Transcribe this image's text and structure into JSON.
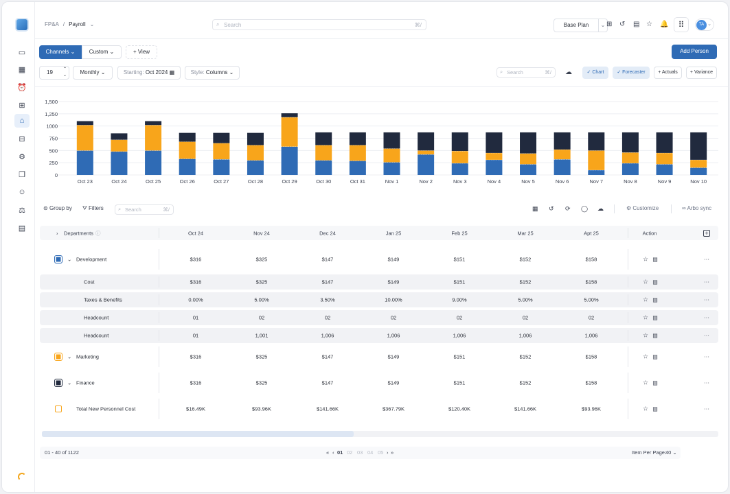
{
  "sidebar": {
    "icons": [
      "sidebar-toggle-icon",
      "dashboard-icon",
      "alarm-icon",
      "widgets-icon",
      "payroll-icon",
      "money-icon",
      "analytics-icon",
      "documents-icon",
      "user-icon",
      "bank-icon",
      "card-icon"
    ]
  },
  "header": {
    "breadcrumb": [
      "FP&A",
      "/",
      "Payroll"
    ],
    "search_placeholder": "Search",
    "search_shortcut": "⌘/",
    "plan": "Base Plan",
    "avatar": "TA"
  },
  "toolbar": {
    "channels": "Channels",
    "custom": "Custom",
    "add_view": "View",
    "add_person": "Add Person",
    "periods": "19",
    "frequency": "Monthly",
    "starting_label": "Starting:",
    "starting_value": "Oct 2024",
    "style_label": "Style:",
    "style_value": "Columns",
    "search_placeholder": "Search",
    "search_shortcut": "⌘/",
    "chart": "Chart",
    "forecaster": "Forecaster",
    "actuals": "Actuals",
    "variance": "Variance"
  },
  "chart_data": {
    "type": "bar",
    "stacked": true,
    "categories": [
      "Oct 23",
      "Oct 24",
      "Oct 25",
      "Oct 26",
      "Oct 27",
      "Oct 28",
      "Oct 29",
      "Oct 30",
      "Oct 31",
      "Nov 1",
      "Nov 2",
      "Nov 3",
      "Nov 4",
      "Nov 5",
      "Nov 6",
      "Nov 7",
      "Nov 8",
      "Nov 9",
      "Nov 10"
    ],
    "yticks": [
      "1,500",
      "1,250",
      "1000",
      "750",
      "500",
      "250",
      "0"
    ],
    "ylim": [
      0,
      1500
    ],
    "grid": true,
    "series": [
      {
        "color": "#2f6bb5",
        "values": [
          500,
          480,
          500,
          330,
          320,
          300,
          580,
          300,
          290,
          260,
          420,
          240,
          310,
          220,
          320,
          100,
          240,
          220,
          150
        ]
      },
      {
        "color": "#f8a51b",
        "values": [
          520,
          240,
          520,
          350,
          330,
          310,
          600,
          310,
          320,
          280,
          80,
          250,
          140,
          220,
          200,
          400,
          220,
          230,
          160
        ]
      },
      {
        "color": "#212a3e",
        "values": [
          80,
          130,
          80,
          180,
          210,
          250,
          80,
          260,
          260,
          330,
          370,
          380,
          420,
          430,
          350,
          370,
          410,
          420,
          560
        ]
      }
    ]
  },
  "table_toolbar": {
    "group_by": "Group by",
    "filters": "Filters",
    "search_placeholder": "Search",
    "search_shortcut": "⌘/",
    "customize": "Customize",
    "sync": "Arbo sync"
  },
  "table": {
    "header_label": "Departments",
    "columns": [
      "Oct 24",
      "Nov 24",
      "Dec 24",
      "Jan 25",
      "Feb 25",
      "Mar 25",
      "Apt 25"
    ],
    "action": "Action",
    "rows": [
      {
        "label": "Development",
        "kind": "group",
        "swatch": "#2f6bb5",
        "values": [
          "$316",
          "$325",
          "$147",
          "$149",
          "$151",
          "$152",
          "$158"
        ]
      },
      {
        "label": "Cost",
        "kind": "sub",
        "values": [
          "$316",
          "$325",
          "$147",
          "$149",
          "$151",
          "$152",
          "$158"
        ]
      },
      {
        "label": "Taxes & Benefits",
        "kind": "sub",
        "values": [
          "0.00%",
          "5.00%",
          "3.50%",
          "10.00%",
          "9.00%",
          "5.00%",
          "5.00%"
        ]
      },
      {
        "label": "Headcount",
        "kind": "sub",
        "values": [
          "01",
          "02",
          "02",
          "02",
          "02",
          "02",
          "02"
        ]
      },
      {
        "label": "Headcount",
        "kind": "sub",
        "values": [
          "01",
          "1,001",
          "1,006",
          "1,006",
          "1,006",
          "1,006",
          "1,006"
        ]
      },
      {
        "label": "Marketing",
        "kind": "group",
        "swatch": "#f8a51b",
        "values": [
          "$316",
          "$325",
          "$147",
          "$149",
          "$151",
          "$152",
          "$158"
        ]
      },
      {
        "label": "Finance",
        "kind": "group",
        "swatch": "#212a3e",
        "values": [
          "$316",
          "$325",
          "$147",
          "$149",
          "$151",
          "$152",
          "$158"
        ]
      },
      {
        "label": "Total New Personnel Cost",
        "kind": "total",
        "swatch": "outline",
        "values": [
          "$16.49K",
          "$93.96K",
          "$141.66K",
          "$367.79K",
          "$120.40K",
          "$141.66K",
          "$93.96K"
        ]
      }
    ]
  },
  "footer": {
    "range": "01 - 40 of 1122",
    "pages": [
      "01",
      "02",
      "03",
      "04",
      "05"
    ],
    "per_page_label": "Item Per Page:",
    "per_page_value": "40"
  }
}
